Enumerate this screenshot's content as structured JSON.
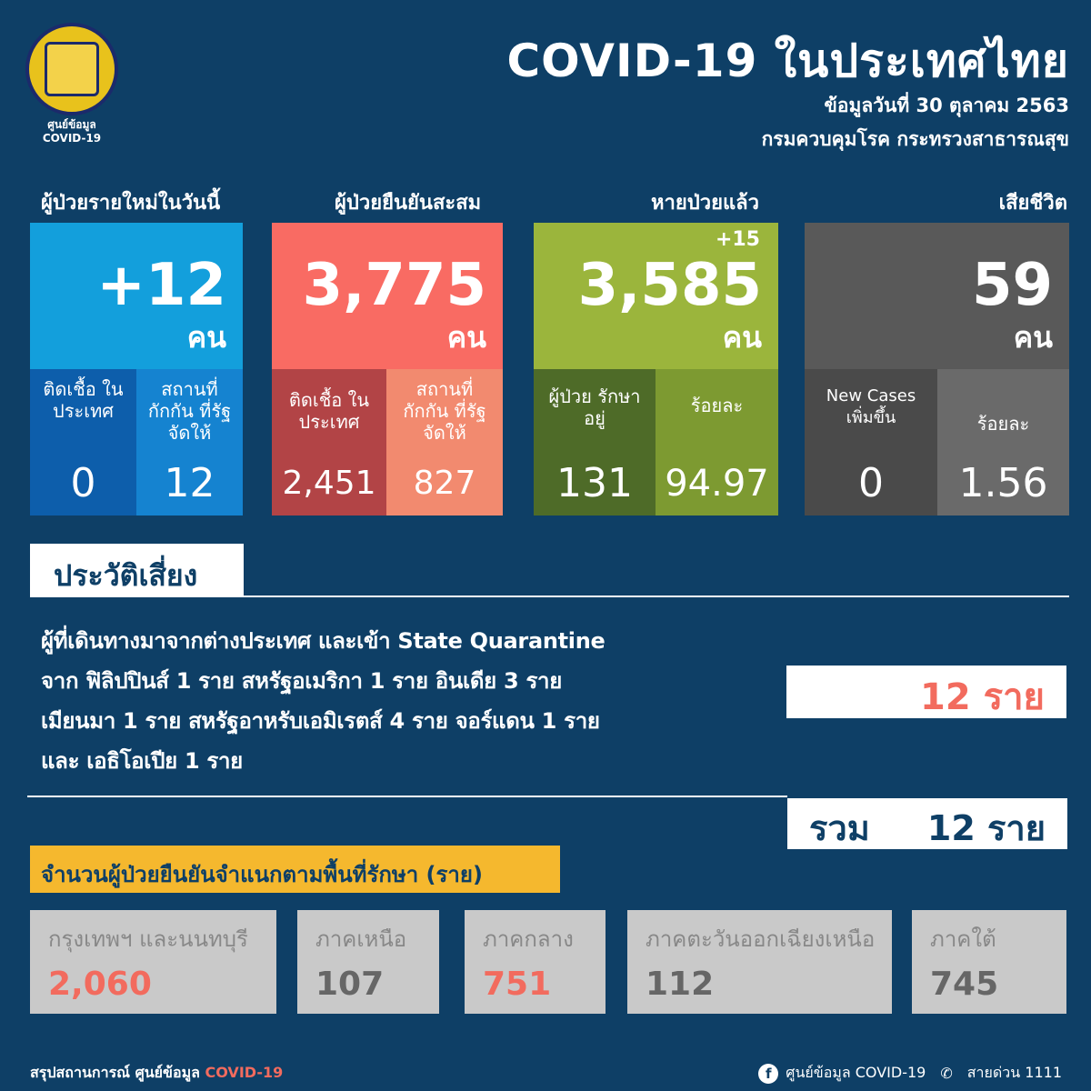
{
  "header": {
    "logo_text_1": "ศูนย์ข้อมูล",
    "logo_text_2": "COVID-19",
    "title": "COVID-19 ในประเทศไทย",
    "date": "ข้อมูลวันที่ 30 ตุลาคม 2563",
    "source": "กรมควบคุมโรค กระทรวงสาธารณสุข"
  },
  "cards": [
    {
      "label": "ผู้ป่วยรายใหม่ในวันนี้",
      "value": "+12",
      "unit": "คน",
      "color": "#139fdc",
      "sub": [
        {
          "label": "ติดเชื้อ ในประเทศ",
          "value": "0"
        },
        {
          "label": "สถานที่ กักกัน ที่รัฐจัดให้",
          "value": "12"
        }
      ]
    },
    {
      "label": "ผู้ป่วยยืนยันสะสม",
      "value": "3,775",
      "unit": "คน",
      "color": "#f96b63",
      "sub": [
        {
          "label": "ติดเชื้อ ในประเทศ",
          "value": "2,451"
        },
        {
          "label": "สถานที่ กักกัน ที่รัฐจัดให้",
          "value": "827"
        }
      ]
    },
    {
      "label": "หายป่วยแล้ว",
      "value": "3,585",
      "delta": "+15",
      "unit": "คน",
      "color": "#9bb53c",
      "sub": [
        {
          "label": "ผู้ป่วย รักษาอยู่",
          "value": "131"
        },
        {
          "label": "ร้อยละ",
          "value": "94.97"
        }
      ]
    },
    {
      "label": "เสียชีวิต",
      "value": "59",
      "unit": "คน",
      "color": "#595959",
      "sub": [
        {
          "label": "New Cases เพิ่มขึ้น",
          "value": "0"
        },
        {
          "label": "ร้อยละ",
          "value": "1.56"
        }
      ]
    }
  ],
  "risk": {
    "heading": "ประวัติเสี่ยง",
    "lines": [
      "ผู้ที่เดินทางมาจากต่างประเทศ และเข้า State Quarantine",
      "จาก ฟิลิปปินส์ 1 ราย สหรัฐอเมริกา 1 ราย อินเดีย 3 ราย",
      "เมียนมา 1 ราย สหรัฐอาหรับเอมิเรตส์ 4 ราย จอร์แดน 1 ราย",
      "และ เอธิโอเปีย 1 ราย"
    ],
    "count": "12 ราย",
    "total_label": "รวม",
    "total": "12 ราย"
  },
  "regions": {
    "heading": "จำนวนผู้ป่วยยืนยันจำแนกตามพื้นที่รักษา (ราย)",
    "items": [
      {
        "name": "กรุงเทพฯ และนนทบุรี",
        "value": "2,060",
        "color": "#f26b5e"
      },
      {
        "name": "ภาคเหนือ",
        "value": "107",
        "color": "#666666"
      },
      {
        "name": "ภาคกลาง",
        "value": "751",
        "color": "#f26b5e"
      },
      {
        "name": "ภาคตะวันออกเฉียงเหนือ",
        "value": "112",
        "color": "#666666"
      },
      {
        "name": "ภาคใต้",
        "value": "745",
        "color": "#666666"
      }
    ]
  },
  "footer": {
    "left": "สรุปสถานการณ์ ศูนย์ข้อมูล",
    "left_accent": "COVID-19",
    "facebook": "ศูนย์ข้อมูล COVID-19",
    "hotline": "สายด่วน 1111",
    "icons": [
      "facebook-icon",
      "phone-icon"
    ]
  }
}
